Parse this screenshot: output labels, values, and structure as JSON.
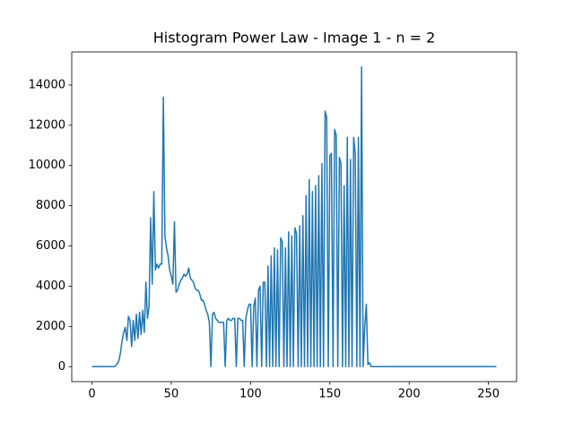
{
  "chart_data": {
    "type": "line",
    "title": "Histogram Power Law - Image 1 - n = 2",
    "color": "#1f77b4",
    "x": [
      0,
      1,
      2,
      3,
      4,
      5,
      6,
      7,
      8,
      9,
      10,
      11,
      12,
      13,
      14,
      15,
      16,
      17,
      18,
      19,
      20,
      21,
      22,
      23,
      24,
      25,
      26,
      27,
      28,
      29,
      30,
      31,
      32,
      33,
      34,
      35,
      36,
      37,
      38,
      39,
      40,
      41,
      42,
      43,
      44,
      45,
      46,
      47,
      48,
      49,
      50,
      51,
      52,
      53,
      54,
      55,
      56,
      57,
      58,
      59,
      60,
      61,
      62,
      63,
      64,
      65,
      66,
      67,
      68,
      69,
      70,
      71,
      72,
      73,
      74,
      75,
      76,
      77,
      78,
      79,
      80,
      81,
      82,
      83,
      84,
      85,
      86,
      87,
      88,
      89,
      90,
      91,
      92,
      93,
      94,
      95,
      96,
      97,
      98,
      99,
      100,
      101,
      102,
      103,
      104,
      105,
      106,
      107,
      108,
      109,
      110,
      111,
      112,
      113,
      114,
      115,
      116,
      117,
      118,
      119,
      120,
      121,
      122,
      123,
      124,
      125,
      126,
      127,
      128,
      129,
      130,
      131,
      132,
      133,
      134,
      135,
      136,
      137,
      138,
      139,
      140,
      141,
      142,
      143,
      144,
      145,
      146,
      147,
      148,
      149,
      150,
      151,
      152,
      153,
      154,
      155,
      156,
      157,
      158,
      159,
      160,
      161,
      162,
      163,
      164,
      165,
      166,
      167,
      168,
      169,
      170,
      171,
      172,
      173,
      174,
      175,
      176,
      177,
      178,
      179,
      180,
      181,
      182,
      183,
      184,
      185,
      186,
      187,
      188,
      189,
      190,
      191,
      192,
      193,
      194,
      195,
      196,
      197,
      198,
      199,
      200,
      201,
      202,
      203,
      204,
      205,
      206,
      207,
      208,
      209,
      210,
      211,
      212,
      213,
      214,
      215,
      216,
      217,
      218,
      219,
      220,
      221,
      222,
      223,
      224,
      225,
      226,
      227,
      228,
      229,
      230,
      231,
      232,
      233,
      234,
      235,
      236,
      237,
      238,
      239,
      240,
      241,
      242,
      243,
      244,
      245,
      246,
      247,
      248,
      249,
      250,
      251,
      252,
      253,
      254,
      255
    ],
    "values": [
      0,
      0,
      0,
      0,
      0,
      0,
      0,
      0,
      0,
      0,
      0,
      0,
      0,
      0,
      0,
      50,
      150,
      300,
      700,
      1300,
      1700,
      1950,
      1300,
      2500,
      2300,
      1000,
      2300,
      1300,
      2600,
      1400,
      2700,
      1600,
      2800,
      1700,
      4200,
      2400,
      3000,
      7400,
      4100,
      8700,
      4800,
      5100,
      4900,
      5100,
      5100,
      13400,
      6500,
      5900,
      5500,
      4800,
      4500,
      4100,
      7200,
      3700,
      3800,
      4100,
      4300,
      4400,
      4600,
      4500,
      4600,
      4900,
      4400,
      4300,
      4200,
      3900,
      3800,
      3800,
      3600,
      3300,
      3300,
      3100,
      2800,
      2600,
      2200,
      0,
      2600,
      2700,
      2400,
      2300,
      2200,
      2200,
      2200,
      2200,
      0,
      2300,
      2400,
      2300,
      2300,
      2400,
      2400,
      0,
      2400,
      2400,
      2300,
      2300,
      0,
      2400,
      2800,
      3100,
      3100,
      0,
      3000,
      3400,
      0,
      3800,
      4000,
      0,
      4200,
      4200,
      0,
      5000,
      0,
      5500,
      0,
      5900,
      0,
      5800,
      0,
      6400,
      6200,
      0,
      5900,
      0,
      6700,
      0,
      6500,
      0,
      6900,
      6600,
      0,
      7000,
      0,
      7500,
      0,
      8500,
      0,
      9300,
      0,
      8700,
      0,
      9000,
      0,
      9500,
      0,
      10100,
      0,
      12700,
      12400,
      0,
      10500,
      10600,
      0,
      11800,
      11500,
      0,
      10400,
      10100,
      0,
      9000,
      0,
      11400,
      0,
      10300,
      0,
      11400,
      10600,
      0,
      11400,
      0,
      14900,
      0,
      2000,
      3100,
      100,
      200,
      0,
      0,
      0,
      0,
      0,
      0,
      0,
      0,
      0,
      0,
      0,
      0,
      0,
      0,
      0,
      0,
      0,
      0,
      0,
      0,
      0,
      0,
      0,
      0,
      0,
      0,
      0,
      0,
      0,
      0,
      0,
      0,
      0,
      0,
      0,
      0,
      0,
      0,
      0,
      0,
      0,
      0,
      0,
      0,
      0,
      0,
      0,
      0,
      0,
      0,
      0,
      0,
      0,
      0,
      0,
      0,
      0,
      0,
      0,
      0,
      0,
      0,
      0,
      0,
      0,
      0,
      0,
      0,
      0,
      0,
      0,
      0,
      0,
      0,
      0,
      0,
      0,
      0,
      0,
      0
    ],
    "xlim": [
      -12.75,
      267.75
    ],
    "xticks": [
      0,
      50,
      100,
      150,
      200,
      250
    ],
    "ylim": [
      -745,
      15645
    ],
    "yticks": [
      0,
      2000,
      4000,
      6000,
      8000,
      10000,
      12000,
      14000
    ],
    "grid": false
  }
}
